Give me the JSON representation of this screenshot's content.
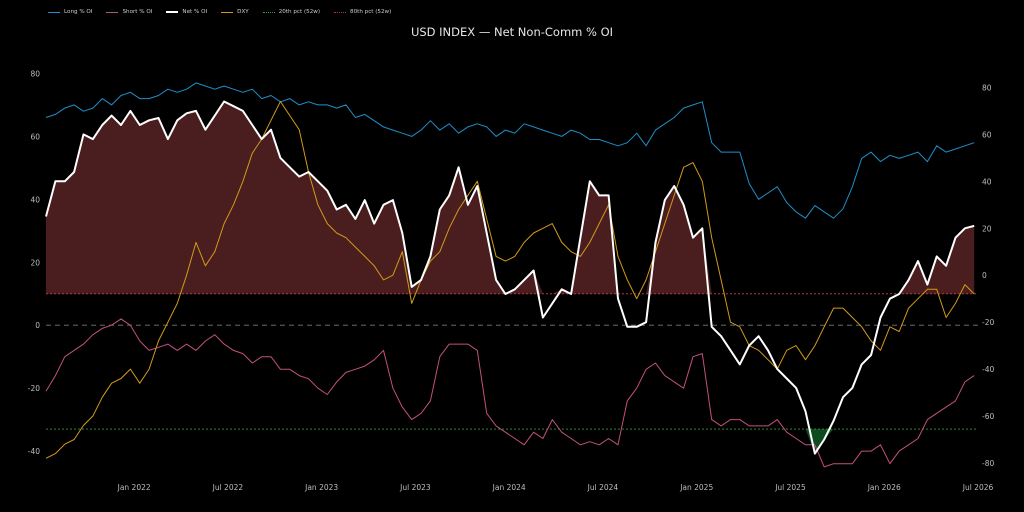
{
  "chart_data": {
    "type": "line",
    "title": "USD INDEX — Net Non-Comm % OI",
    "legend_placement": "top-left",
    "grid": false,
    "legend": [
      {
        "key": "long",
        "label": "Long % OI",
        "color": "#1f8fc9",
        "style": "solid"
      },
      {
        "key": "short",
        "label": "Short % OI",
        "color": "#c2507e",
        "style": "solid"
      },
      {
        "key": "net",
        "label": "Net % OI",
        "color": "#ffffff",
        "style": "solid-thick"
      },
      {
        "key": "dxy",
        "label": "DXY",
        "color": "#d39a1c",
        "style": "solid"
      },
      {
        "key": "p20",
        "label": "20th pct (52w)",
        "color": "#2e9b35",
        "style": "dotted"
      },
      {
        "key": "p80",
        "label": "80th pct (52w)",
        "color": "#b33a3a",
        "style": "dotted"
      }
    ],
    "x_ticks": [
      "Jan 2022",
      "Jul 2022",
      "Jan 2023",
      "Jul 2023",
      "Jan 2024",
      "Jul 2024",
      "Jan 2025",
      "Jul 2025",
      "Jan 2026",
      "Jul 2026"
    ],
    "x_tick_positions": [
      0.0,
      0.5,
      1.0,
      1.5,
      2.0,
      2.5,
      3.0,
      3.5,
      4.0,
      4.5
    ],
    "x_range": [
      -0.47,
      4.5
    ],
    "left_axis": {
      "ticks": [
        -40,
        -20,
        0,
        20,
        40,
        60,
        80
      ],
      "range": [
        -46,
        83
      ]
    },
    "right_axis": {
      "ticks": [
        -80,
        -60,
        -40,
        -20,
        0,
        20,
        40,
        60,
        80
      ],
      "range": [
        -83,
        90
      ]
    },
    "zero_line": 0,
    "pct80_level": 10,
    "pct20_level": -33,
    "series": [
      {
        "name": "Long % OI",
        "axis": "left",
        "color": "#1f8fc9",
        "x": [
          -0.47,
          -0.42,
          -0.37,
          -0.32,
          -0.27,
          -0.22,
          -0.17,
          -0.12,
          -0.07,
          -0.02,
          0.03,
          0.08,
          0.13,
          0.18,
          0.23,
          0.28,
          0.33,
          0.38,
          0.43,
          0.48,
          0.53,
          0.58,
          0.63,
          0.68,
          0.73,
          0.78,
          0.83,
          0.88,
          0.93,
          0.98,
          1.03,
          1.08,
          1.13,
          1.18,
          1.23,
          1.28,
          1.33,
          1.38,
          1.43,
          1.48,
          1.53,
          1.58,
          1.63,
          1.68,
          1.73,
          1.78,
          1.83,
          1.88,
          1.93,
          1.98,
          2.03,
          2.08,
          2.13,
          2.18,
          2.23,
          2.28,
          2.33,
          2.38,
          2.43,
          2.48,
          2.53,
          2.58,
          2.63,
          2.68,
          2.73,
          2.78,
          2.83,
          2.88,
          2.93,
          2.98,
          3.03,
          3.08,
          3.13,
          3.18,
          3.23,
          3.28,
          3.33,
          3.38,
          3.43,
          3.48,
          3.53,
          3.58,
          3.63,
          3.68,
          3.73,
          3.78,
          3.83,
          3.88,
          3.93,
          3.98,
          4.03,
          4.08,
          4.13,
          4.18,
          4.23,
          4.28,
          4.33,
          4.38,
          4.43,
          4.48
        ],
        "values": [
          66,
          67,
          69,
          70,
          68,
          69,
          72,
          70,
          73,
          74,
          72,
          72,
          73,
          75,
          74,
          75,
          77,
          76,
          75,
          76,
          75,
          74,
          75,
          72,
          73,
          71,
          72,
          70,
          71,
          70,
          70,
          69,
          70,
          66,
          67,
          65,
          63,
          62,
          61,
          60,
          62,
          65,
          62,
          64,
          61,
          63,
          64,
          63,
          60,
          62,
          61,
          64,
          63,
          62,
          61,
          60,
          62,
          61,
          59,
          59,
          58,
          57,
          58,
          61,
          57,
          62,
          64,
          66,
          69,
          70,
          71,
          58,
          55,
          55,
          55,
          45,
          40,
          42,
          44,
          39,
          36,
          34,
          38,
          36,
          34,
          37,
          44,
          53,
          55,
          52,
          54,
          53,
          54,
          55,
          52,
          57,
          55,
          56,
          57,
          58
        ]
      },
      {
        "name": "Short % OI",
        "axis": "left",
        "color": "#c2507e",
        "x": [
          -0.47,
          -0.42,
          -0.37,
          -0.32,
          -0.27,
          -0.22,
          -0.17,
          -0.12,
          -0.07,
          -0.02,
          0.03,
          0.08,
          0.13,
          0.18,
          0.23,
          0.28,
          0.33,
          0.38,
          0.43,
          0.48,
          0.53,
          0.58,
          0.63,
          0.68,
          0.73,
          0.78,
          0.83,
          0.88,
          0.93,
          0.98,
          1.03,
          1.08,
          1.13,
          1.18,
          1.23,
          1.28,
          1.33,
          1.38,
          1.43,
          1.48,
          1.53,
          1.58,
          1.63,
          1.68,
          1.73,
          1.78,
          1.83,
          1.88,
          1.93,
          1.98,
          2.03,
          2.08,
          2.13,
          2.18,
          2.23,
          2.28,
          2.33,
          2.38,
          2.43,
          2.48,
          2.53,
          2.58,
          2.63,
          2.68,
          2.73,
          2.78,
          2.83,
          2.88,
          2.93,
          2.98,
          3.03,
          3.08,
          3.13,
          3.18,
          3.23,
          3.28,
          3.33,
          3.38,
          3.43,
          3.48,
          3.53,
          3.58,
          3.63,
          3.68,
          3.73,
          3.78,
          3.83,
          3.88,
          3.93,
          3.98,
          4.03,
          4.08,
          4.13,
          4.18,
          4.23,
          4.28,
          4.33,
          4.38,
          4.43,
          4.48
        ],
        "values": [
          -21,
          -16,
          -10,
          -8,
          -6,
          -3,
          -1,
          0,
          2,
          0,
          -5,
          -8,
          -7,
          -6,
          -8,
          -6,
          -8,
          -5,
          -3,
          -6,
          -8,
          -9,
          -12,
          -10,
          -10,
          -14,
          -14,
          -16,
          -17,
          -20,
          -22,
          -18,
          -15,
          -14,
          -13,
          -11,
          -8,
          -20,
          -26,
          -30,
          -28,
          -24,
          -10,
          -6,
          -6,
          -6,
          -8,
          -28,
          -32,
          -34,
          -36,
          -38,
          -34,
          -36,
          -30,
          -34,
          -36,
          -38,
          -37,
          -38,
          -36,
          -38,
          -24,
          -20,
          -14,
          -12,
          -16,
          -18,
          -20,
          -10,
          -9,
          -30,
          -32,
          -30,
          -30,
          -32,
          -32,
          -32,
          -30,
          -34,
          -36,
          -38,
          -38,
          -45,
          -44,
          -44,
          -44,
          -40,
          -40,
          -38,
          -44,
          -40,
          -38,
          -36,
          -30,
          -28,
          -26,
          -24,
          -18,
          -16
        ]
      },
      {
        "name": "Net % OI",
        "axis": "right",
        "color": "#ffffff",
        "x": [
          -0.47,
          -0.42,
          -0.37,
          -0.32,
          -0.27,
          -0.22,
          -0.17,
          -0.12,
          -0.07,
          -0.02,
          0.03,
          0.08,
          0.13,
          0.18,
          0.23,
          0.28,
          0.33,
          0.38,
          0.43,
          0.48,
          0.53,
          0.58,
          0.63,
          0.68,
          0.73,
          0.78,
          0.83,
          0.88,
          0.93,
          0.98,
          1.03,
          1.08,
          1.13,
          1.18,
          1.23,
          1.28,
          1.33,
          1.38,
          1.43,
          1.48,
          1.53,
          1.58,
          1.63,
          1.68,
          1.73,
          1.78,
          1.83,
          1.88,
          1.93,
          1.98,
          2.03,
          2.08,
          2.13,
          2.18,
          2.23,
          2.28,
          2.33,
          2.38,
          2.43,
          2.48,
          2.53,
          2.58,
          2.63,
          2.68,
          2.73,
          2.78,
          2.83,
          2.88,
          2.93,
          2.98,
          3.03,
          3.08,
          3.13,
          3.18,
          3.23,
          3.28,
          3.33,
          3.38,
          3.43,
          3.48,
          3.53,
          3.58,
          3.63,
          3.68,
          3.73,
          3.78,
          3.83,
          3.88,
          3.93,
          3.98,
          4.03,
          4.08,
          4.13,
          4.18,
          4.23,
          4.28,
          4.33,
          4.38,
          4.43,
          4.48
        ],
        "values": [
          25,
          40,
          40,
          44,
          60,
          58,
          64,
          68,
          64,
          70,
          64,
          66,
          67,
          58,
          66,
          69,
          70,
          62,
          68,
          74,
          72,
          70,
          64,
          58,
          62,
          50,
          46,
          42,
          44,
          40,
          36,
          28,
          30,
          24,
          32,
          22,
          30,
          32,
          18,
          -5,
          -2,
          8,
          28,
          34,
          46,
          30,
          38,
          18,
          -2,
          -8,
          -6,
          -2,
          2,
          -18,
          -12,
          -6,
          -8,
          16,
          40,
          34,
          34,
          -10,
          -22,
          -22,
          -20,
          14,
          32,
          38,
          30,
          16,
          20,
          -22,
          -26,
          -32,
          -38,
          -30,
          -26,
          -32,
          -40,
          -44,
          -48,
          -58,
          -76,
          -70,
          -62,
          -52,
          -48,
          -38,
          -34,
          -18,
          -10,
          -8,
          -2,
          6,
          -4,
          8,
          4,
          16,
          20,
          21
        ]
      },
      {
        "name": "DXY",
        "axis": "right",
        "color": "#d39a1c",
        "x": [
          -0.47,
          -0.42,
          -0.37,
          -0.32,
          -0.27,
          -0.22,
          -0.17,
          -0.12,
          -0.07,
          -0.02,
          0.03,
          0.08,
          0.13,
          0.18,
          0.23,
          0.28,
          0.33,
          0.38,
          0.43,
          0.48,
          0.53,
          0.58,
          0.63,
          0.68,
          0.73,
          0.78,
          0.83,
          0.88,
          0.93,
          0.98,
          1.03,
          1.08,
          1.13,
          1.18,
          1.23,
          1.28,
          1.33,
          1.38,
          1.43,
          1.48,
          1.53,
          1.58,
          1.63,
          1.68,
          1.73,
          1.78,
          1.83,
          1.88,
          1.93,
          1.98,
          2.03,
          2.08,
          2.13,
          2.18,
          2.23,
          2.28,
          2.33,
          2.38,
          2.43,
          2.48,
          2.53,
          2.58,
          2.63,
          2.68,
          2.73,
          2.78,
          2.83,
          2.88,
          2.93,
          2.98,
          3.03,
          3.08,
          3.13,
          3.18,
          3.23,
          3.28,
          3.33,
          3.38,
          3.43,
          3.48,
          3.53,
          3.58,
          3.63,
          3.68,
          3.73,
          3.78,
          3.83,
          3.88,
          3.93,
          3.98,
          4.03,
          4.08,
          4.13,
          4.18,
          4.23,
          4.28,
          4.33,
          4.38,
          4.43,
          4.48
        ],
        "values": [
          -78,
          -76,
          -72,
          -70,
          -64,
          -60,
          -52,
          -46,
          -44,
          -40,
          -46,
          -40,
          -28,
          -20,
          -12,
          0,
          14,
          4,
          10,
          22,
          30,
          40,
          52,
          58,
          66,
          74,
          68,
          62,
          44,
          30,
          22,
          18,
          16,
          12,
          8,
          4,
          -2,
          0,
          10,
          -12,
          -2,
          6,
          10,
          20,
          28,
          34,
          40,
          24,
          8,
          6,
          8,
          14,
          18,
          20,
          22,
          14,
          10,
          8,
          14,
          22,
          30,
          8,
          -2,
          -10,
          -2,
          10,
          22,
          34,
          46,
          48,
          40,
          16,
          -2,
          -20,
          -22,
          -30,
          -32,
          -36,
          -40,
          -32,
          -30,
          -36,
          -30,
          -22,
          -14,
          -14,
          -18,
          -22,
          -28,
          -32,
          -22,
          -24,
          -14,
          -10,
          -6,
          -6,
          -18,
          -12,
          -4,
          -8
        ]
      }
    ]
  }
}
